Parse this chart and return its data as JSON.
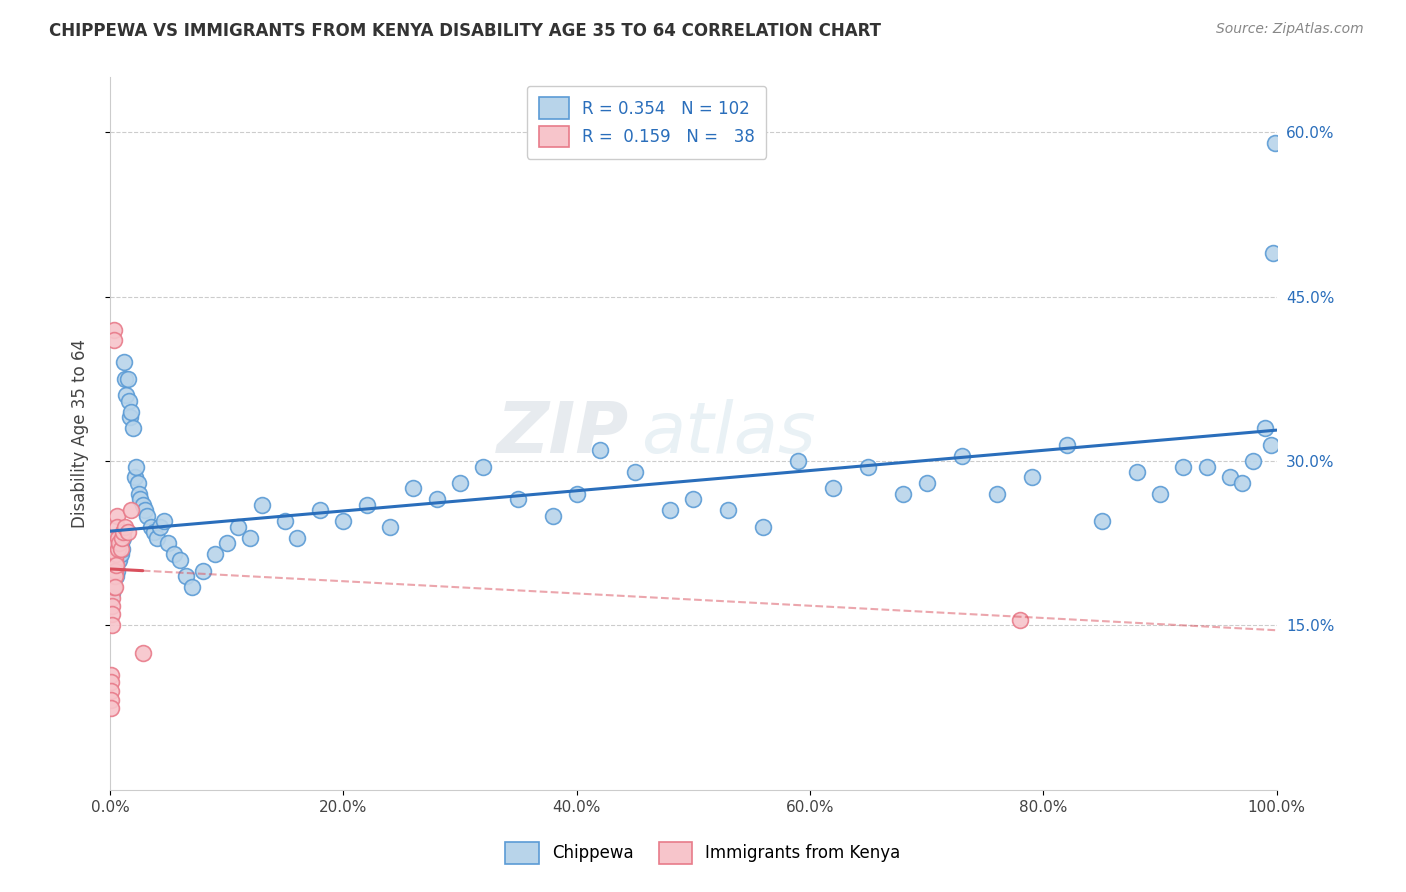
{
  "title": "CHIPPEWA VS IMMIGRANTS FROM KENYA DISABILITY AGE 35 TO 64 CORRELATION CHART",
  "source": "Source: ZipAtlas.com",
  "ylabel": "Disability Age 35 to 64",
  "xlim": [
    0.0,
    1.0
  ],
  "ylim": [
    0.0,
    0.65
  ],
  "y_tick_vals": [
    0.15,
    0.3,
    0.45,
    0.6
  ],
  "y_tick_labels": [
    "15.0%",
    "30.0%",
    "45.0%",
    "60.0%"
  ],
  "x_tick_vals": [
    0.0,
    0.2,
    0.4,
    0.6,
    0.8,
    1.0
  ],
  "x_tick_labels": [
    "0.0%",
    "20.0%",
    "40.0%",
    "60.0%",
    "80.0%",
    "100.0%"
  ],
  "legend1_R": "0.354",
  "legend1_N": "102",
  "legend2_R": "0.159",
  "legend2_N": "38",
  "blue_face": "#b8d4ea",
  "blue_edge": "#5b9bd5",
  "pink_face": "#f7c5cb",
  "pink_edge": "#e87b8a",
  "line_blue_color": "#2a6ebb",
  "line_pink_color": "#d94f5c",
  "watermark": "ZIPatlas",
  "chippewa_x": [
    0.001,
    0.001,
    0.001,
    0.002,
    0.002,
    0.002,
    0.002,
    0.003,
    0.003,
    0.003,
    0.003,
    0.004,
    0.004,
    0.004,
    0.005,
    0.005,
    0.005,
    0.005,
    0.006,
    0.006,
    0.006,
    0.007,
    0.007,
    0.008,
    0.008,
    0.009,
    0.009,
    0.01,
    0.01,
    0.011,
    0.012,
    0.013,
    0.014,
    0.015,
    0.016,
    0.017,
    0.018,
    0.02,
    0.021,
    0.022,
    0.024,
    0.025,
    0.026,
    0.028,
    0.03,
    0.032,
    0.035,
    0.038,
    0.04,
    0.043,
    0.046,
    0.05,
    0.055,
    0.06,
    0.065,
    0.07,
    0.08,
    0.09,
    0.1,
    0.11,
    0.12,
    0.13,
    0.15,
    0.16,
    0.18,
    0.2,
    0.22,
    0.24,
    0.26,
    0.28,
    0.3,
    0.32,
    0.35,
    0.38,
    0.4,
    0.42,
    0.45,
    0.48,
    0.5,
    0.53,
    0.56,
    0.59,
    0.62,
    0.65,
    0.68,
    0.7,
    0.73,
    0.76,
    0.79,
    0.82,
    0.85,
    0.88,
    0.9,
    0.92,
    0.94,
    0.96,
    0.97,
    0.98,
    0.99,
    0.995,
    0.997,
    0.999
  ],
  "chippewa_y": [
    0.205,
    0.195,
    0.185,
    0.21,
    0.2,
    0.19,
    0.18,
    0.215,
    0.205,
    0.195,
    0.185,
    0.22,
    0.21,
    0.2,
    0.225,
    0.215,
    0.205,
    0.195,
    0.22,
    0.21,
    0.2,
    0.225,
    0.215,
    0.22,
    0.21,
    0.225,
    0.215,
    0.23,
    0.22,
    0.23,
    0.39,
    0.375,
    0.36,
    0.375,
    0.355,
    0.34,
    0.345,
    0.33,
    0.285,
    0.295,
    0.28,
    0.27,
    0.265,
    0.26,
    0.255,
    0.25,
    0.24,
    0.235,
    0.23,
    0.24,
    0.245,
    0.225,
    0.215,
    0.21,
    0.195,
    0.185,
    0.2,
    0.215,
    0.225,
    0.24,
    0.23,
    0.26,
    0.245,
    0.23,
    0.255,
    0.245,
    0.26,
    0.24,
    0.275,
    0.265,
    0.28,
    0.295,
    0.265,
    0.25,
    0.27,
    0.31,
    0.29,
    0.255,
    0.265,
    0.255,
    0.24,
    0.3,
    0.275,
    0.295,
    0.27,
    0.28,
    0.305,
    0.27,
    0.285,
    0.315,
    0.245,
    0.29,
    0.27,
    0.295,
    0.295,
    0.285,
    0.28,
    0.3,
    0.33,
    0.315,
    0.49,
    0.59
  ],
  "kenya_x": [
    0.001,
    0.001,
    0.001,
    0.001,
    0.001,
    0.002,
    0.002,
    0.002,
    0.002,
    0.002,
    0.002,
    0.002,
    0.003,
    0.003,
    0.003,
    0.003,
    0.003,
    0.003,
    0.004,
    0.004,
    0.004,
    0.004,
    0.005,
    0.005,
    0.005,
    0.006,
    0.006,
    0.007,
    0.007,
    0.008,
    0.009,
    0.01,
    0.011,
    0.013,
    0.015,
    0.018,
    0.78,
    0.028
  ],
  "kenya_y": [
    0.105,
    0.098,
    0.09,
    0.082,
    0.075,
    0.2,
    0.195,
    0.185,
    0.175,
    0.168,
    0.16,
    0.15,
    0.42,
    0.41,
    0.21,
    0.205,
    0.195,
    0.185,
    0.21,
    0.2,
    0.195,
    0.185,
    0.225,
    0.215,
    0.205,
    0.25,
    0.24,
    0.23,
    0.22,
    0.225,
    0.22,
    0.23,
    0.235,
    0.24,
    0.235,
    0.255,
    0.155,
    0.125
  ]
}
